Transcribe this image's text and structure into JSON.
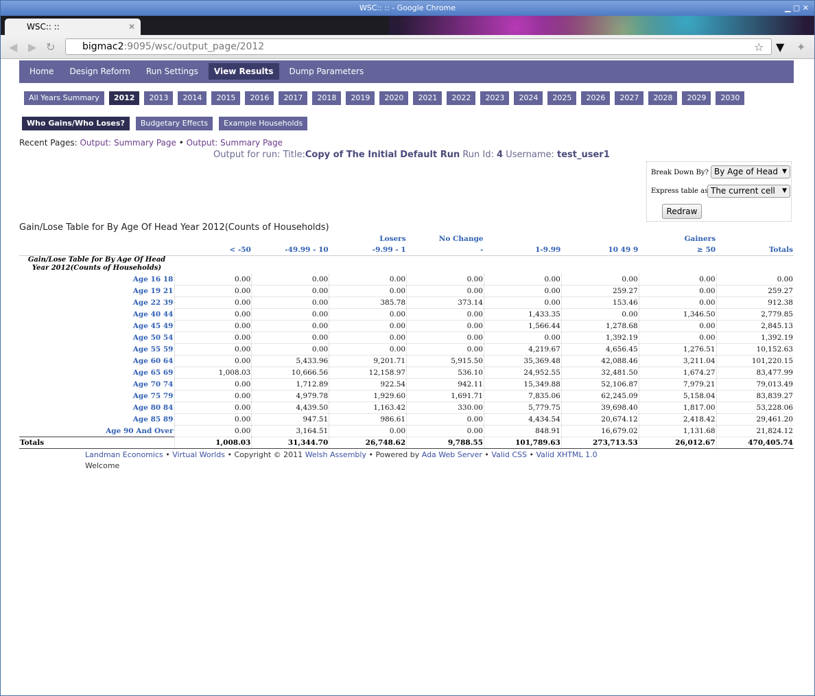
{
  "browser": {
    "window_title": "WSC::  :: - Google Chrome",
    "tab_title": "WSC::  ::",
    "url": {
      "host": "bigmac2",
      "path": ":9095/wsc/output_page/2012"
    }
  },
  "nav": {
    "items": [
      "Home",
      "Design Reform",
      "Run Settings",
      "View Results",
      "Dump Parameters"
    ],
    "active": 3
  },
  "years": {
    "items": [
      "All Years Summary",
      "2012",
      "2013",
      "2014",
      "2015",
      "2016",
      "2017",
      "2018",
      "2019",
      "2020",
      "2021",
      "2022",
      "2023",
      "2024",
      "2025",
      "2026",
      "2027",
      "2028",
      "2029",
      "2030"
    ],
    "active": 1
  },
  "subnav": {
    "items": [
      "Who Gains/Who Loses?",
      "Budgetary Effects",
      "Example Households"
    ],
    "active": 0
  },
  "recent_pages": {
    "label": "Recent Pages:",
    "links": [
      "Output: Summary Page",
      "Output: Summary Page"
    ],
    "separator": "•"
  },
  "run_info": {
    "prefix": "Output for run: Title:",
    "title": "Copy of The Initial Default Run",
    "run_id_label": "Run Id:",
    "run_id": "4",
    "username_label": "Username:",
    "username": "test_user1"
  },
  "form": {
    "breakdown_label": "Break Down By?",
    "breakdown_value": "By Age of Head",
    "express_label": "Express table as?",
    "express_value": "The current cell",
    "button": "Redraw"
  },
  "table": {
    "caption": "Gain/Lose Table for By Age Of Head Year 2012(Counts of Households)",
    "corner": "Gain/Lose Table for By Age Of Head Year 2012(Counts of Households)",
    "group_headers": [
      null,
      null,
      "Losers",
      "No Change",
      null,
      null,
      "Gainers",
      null
    ],
    "columns": [
      "< -50",
      "-49.99 - 10",
      "-9.99 - 1",
      "-",
      "1-9.99",
      "10 49 9",
      "≥ 50",
      "Totals"
    ],
    "rows": [
      {
        "label": "Age 16 18",
        "cells": [
          "0.00",
          "0.00",
          "0.00",
          "0.00",
          "0.00",
          "0.00",
          "0.00",
          "0.00"
        ]
      },
      {
        "label": "Age 19 21",
        "cells": [
          "0.00",
          "0.00",
          "0.00",
          "0.00",
          "0.00",
          "259.27",
          "0.00",
          "259.27"
        ]
      },
      {
        "label": "Age 22 39",
        "cells": [
          "0.00",
          "0.00",
          "385.78",
          "373.14",
          "0.00",
          "153.46",
          "0.00",
          "912.38"
        ]
      },
      {
        "label": "Age 40 44",
        "cells": [
          "0.00",
          "0.00",
          "0.00",
          "0.00",
          "1,433.35",
          "0.00",
          "1,346.50",
          "2,779.85"
        ]
      },
      {
        "label": "Age 45 49",
        "cells": [
          "0.00",
          "0.00",
          "0.00",
          "0.00",
          "1,566.44",
          "1,278.68",
          "0.00",
          "2,845.13"
        ]
      },
      {
        "label": "Age 50 54",
        "cells": [
          "0.00",
          "0.00",
          "0.00",
          "0.00",
          "0.00",
          "1,392.19",
          "0.00",
          "1,392.19"
        ]
      },
      {
        "label": "Age 55 59",
        "cells": [
          "0.00",
          "0.00",
          "0.00",
          "0.00",
          "4,219.67",
          "4,656.45",
          "1,276.51",
          "10,152.63"
        ]
      },
      {
        "label": "Age 60 64",
        "cells": [
          "0.00",
          "5,433.96",
          "9,201.71",
          "5,915.50",
          "35,369.48",
          "42,088.46",
          "3,211.04",
          "101,220.15"
        ]
      },
      {
        "label": "Age 65 69",
        "cells": [
          "1,008.03",
          "10,666.56",
          "12,158.97",
          "536.10",
          "24,952.55",
          "32,481.50",
          "1,674.27",
          "83,477.99"
        ]
      },
      {
        "label": "Age 70 74",
        "cells": [
          "0.00",
          "1,712.89",
          "922.54",
          "942.11",
          "15,349.88",
          "52,106.87",
          "7,979.21",
          "79,013.49"
        ]
      },
      {
        "label": "Age 75 79",
        "cells": [
          "0.00",
          "4,979.78",
          "1,929.60",
          "1,691.71",
          "7,835.06",
          "62,245.09",
          "5,158.04",
          "83,839.27"
        ]
      },
      {
        "label": "Age 80 84",
        "cells": [
          "0.00",
          "4,439.50",
          "1,163.42",
          "330.00",
          "5,779.75",
          "39,698.40",
          "1,817.00",
          "53,228.06"
        ]
      },
      {
        "label": "Age 85 89",
        "cells": [
          "0.00",
          "947.51",
          "986.61",
          "0.00",
          "4,434.54",
          "20,674.12",
          "2,418.42",
          "29,461.20"
        ]
      },
      {
        "label": "Age 90 And Over",
        "cells": [
          "0.00",
          "3,164.51",
          "0.00",
          "0.00",
          "848.91",
          "16,679.02",
          "1,131.68",
          "21,824.12"
        ]
      }
    ],
    "totals": {
      "label": "Totals",
      "cells": [
        "1,008.03",
        "31,344.70",
        "26,748.62",
        "9,788.55",
        "101,789.63",
        "273,713.53",
        "26,012.67",
        "470,405.74"
      ]
    }
  },
  "footer": {
    "separator": "•",
    "items": [
      [
        {
          "text": "Landman Economics",
          "link": true
        }
      ],
      [
        {
          "text": "Virtual Worlds",
          "link": true
        }
      ],
      [
        {
          "text": "Copyright © 2011",
          "link": false
        },
        {
          "text": "Welsh Assembly",
          "link": true
        }
      ],
      [
        {
          "text": "Powered by",
          "link": false
        },
        {
          "text": "Ada Web Server",
          "link": true
        }
      ],
      [
        {
          "text": "Valid CSS",
          "link": true
        }
      ],
      [
        {
          "text": "Valid XHTML 1.0",
          "link": true
        }
      ]
    ],
    "welcome": "Welcome"
  }
}
